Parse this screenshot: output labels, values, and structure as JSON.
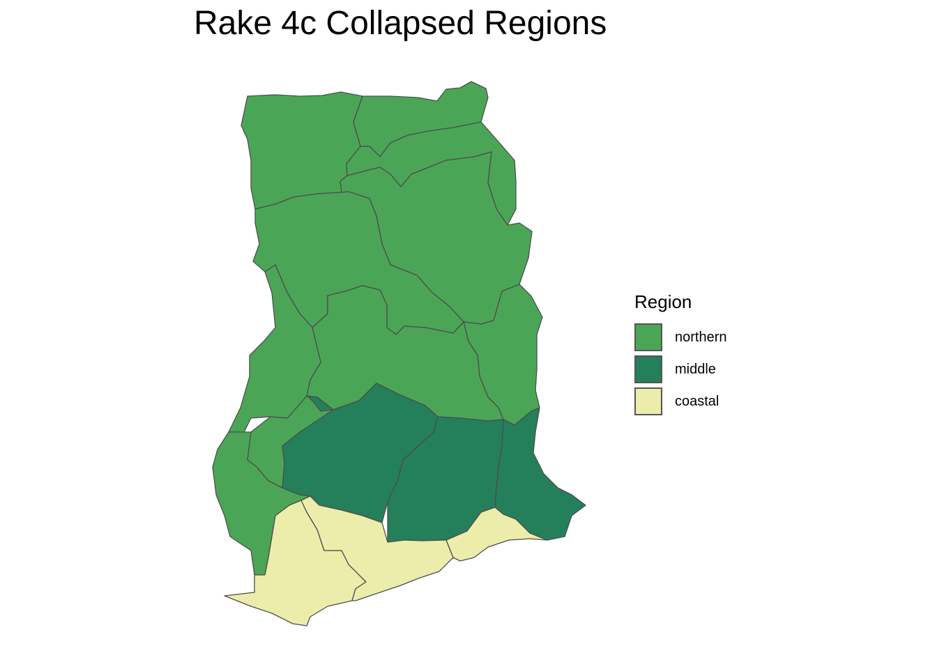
{
  "title": "Rake 4c Collapsed Regions",
  "legend": {
    "title": "Region",
    "items": [
      {
        "label": "northern",
        "color": "#4aa656"
      },
      {
        "label": "middle",
        "color": "#23805b"
      },
      {
        "label": "coastal",
        "color": "#ecedaa"
      }
    ]
  },
  "colors": {
    "border": "#4d4d4d",
    "background": "#ffffff"
  }
}
